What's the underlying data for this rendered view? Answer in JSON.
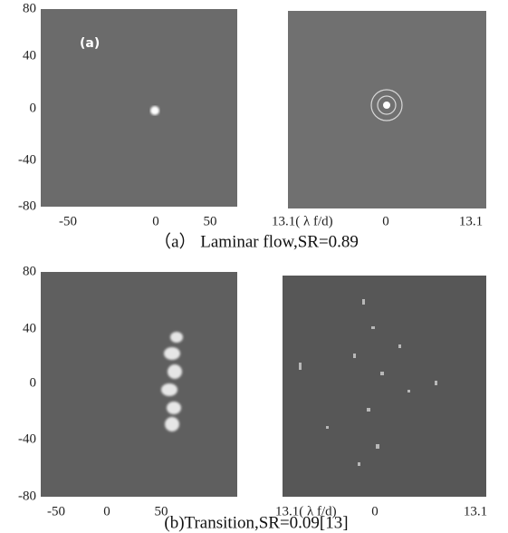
{
  "panels": [
    {
      "tag": "(a)",
      "y_ticks": [
        "80",
        "40",
        "0",
        "-40",
        "-80"
      ],
      "x_ticks": [
        "-50",
        "0",
        "50"
      ],
      "right_x_ticks": [
        "13.1( λ f/d)",
        "0",
        "13.1"
      ],
      "caption": "（a） Laminar flow,SR=0.89"
    },
    {
      "y_ticks": [
        "80",
        "40",
        "0",
        "-40",
        "-80"
      ],
      "x_ticks": [
        "-50",
        "0",
        "50"
      ],
      "right_x_ticks": [
        "13.1( λ f/d)",
        "0",
        "13.1"
      ],
      "caption": "(b)Transition,SR=0.09[13]"
    }
  ]
}
